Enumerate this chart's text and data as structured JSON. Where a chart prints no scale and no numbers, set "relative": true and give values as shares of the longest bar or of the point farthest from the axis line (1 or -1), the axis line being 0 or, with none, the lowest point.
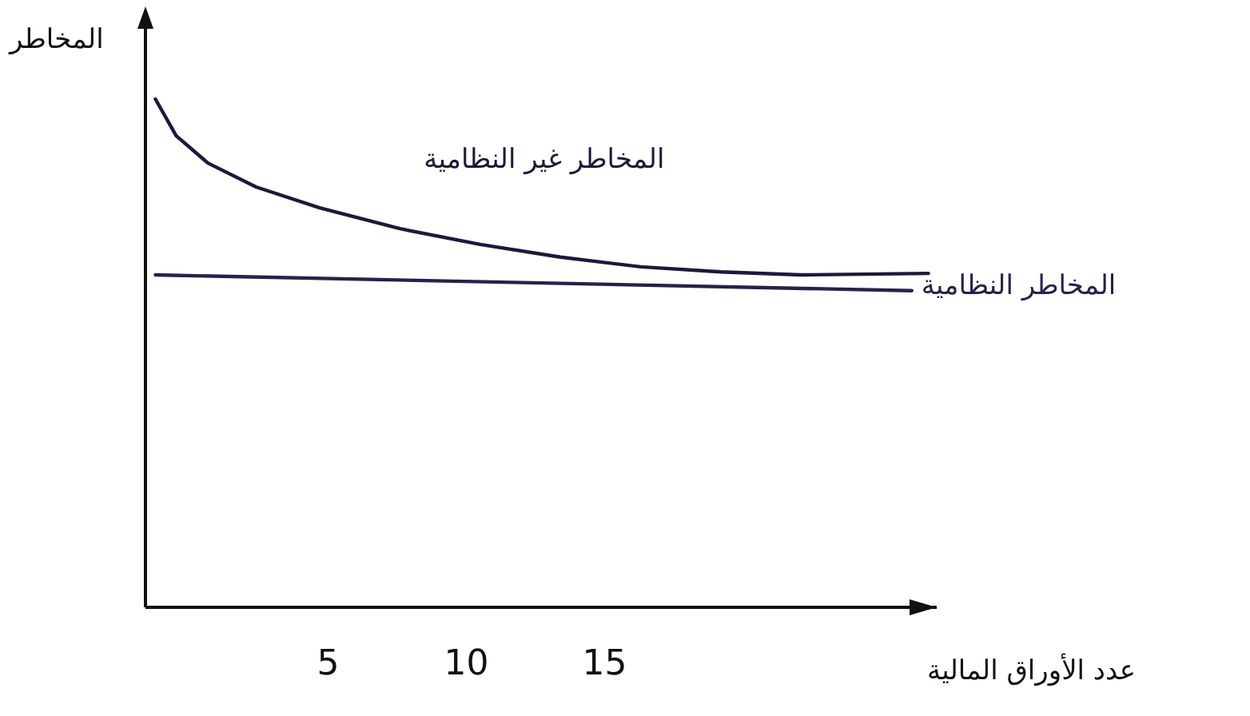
{
  "chart_data": {
    "type": "line",
    "ylabel": "المخاطر",
    "xlabel": "عدد الأوراق المالية",
    "relative": true,
    "xlim": [
      -1.6,
      27
    ],
    "xticks": [
      5,
      10,
      15
    ],
    "series": [
      {
        "name": "المخاطر غير النظامية",
        "color": "#1a1a3a",
        "x": [
          -1.24,
          -0.49,
          0.66,
          2.4,
          4.7,
          7.6,
          10.5,
          13.4,
          16.3,
          19.2,
          22.1,
          26.7
        ],
        "values": [
          1,
          0.928,
          0.874,
          0.827,
          0.786,
          0.745,
          0.714,
          0.689,
          0.67,
          0.66,
          0.654,
          0.657
        ]
      },
      {
        "name": "المخاطر النظامية",
        "color": "#23234a",
        "x": [
          -1.24,
          26.1
        ],
        "values": [
          0.654,
          0.623
        ]
      }
    ]
  }
}
